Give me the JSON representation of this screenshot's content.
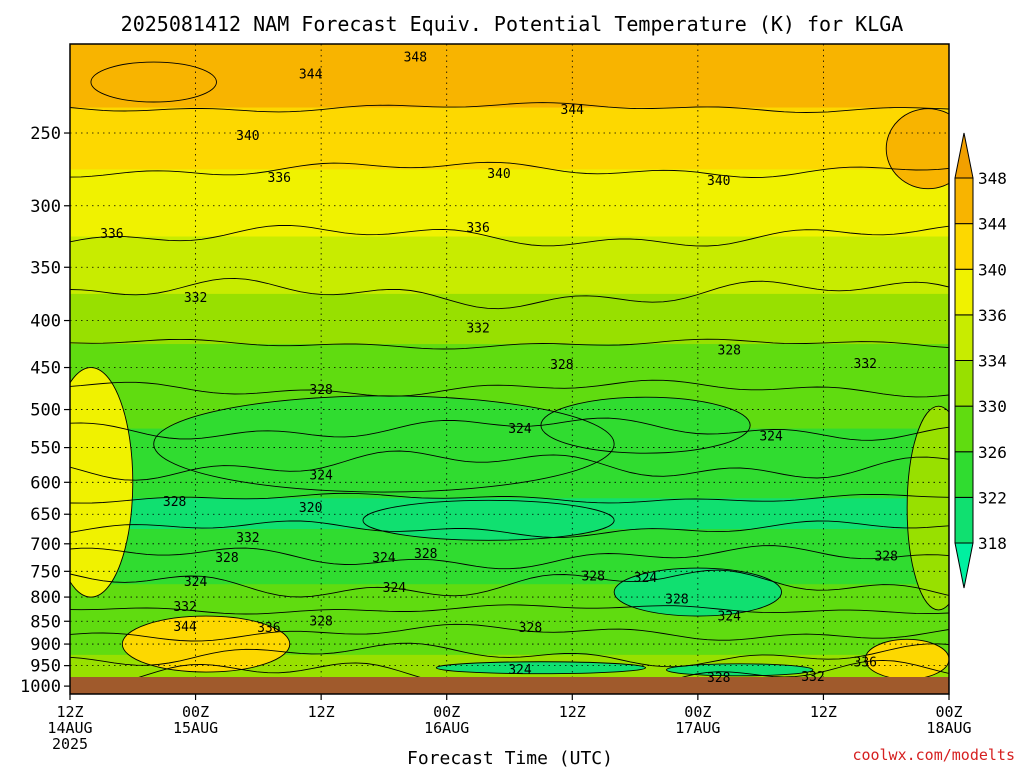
{
  "chart_data": {
    "type": "heatmap",
    "title": "2025081412 NAM Forecast Equiv. Potential Temperature (K) for KLGA",
    "xlabel": "Forecast Time (UTC)",
    "ylabel": "",
    "y_axis": {
      "scale": "log",
      "reversed": true,
      "range": [
        1020,
        200
      ],
      "ticks": [
        1000,
        950,
        900,
        850,
        800,
        750,
        700,
        650,
        600,
        550,
        500,
        450,
        400,
        350,
        300,
        250
      ]
    },
    "x_axis": {
      "range_hours": [
        0,
        84
      ],
      "ticks": [
        {
          "hour": 0,
          "line1": "12Z",
          "line2": "14AUG",
          "line3": "2025"
        },
        {
          "hour": 12,
          "line1": "00Z",
          "line2": "15AUG",
          "line3": ""
        },
        {
          "hour": 24,
          "line1": "12Z",
          "line2": "",
          "line3": ""
        },
        {
          "hour": 36,
          "line1": "00Z",
          "line2": "16AUG",
          "line3": ""
        },
        {
          "hour": 48,
          "line1": "12Z",
          "line2": "",
          "line3": ""
        },
        {
          "hour": 60,
          "line1": "00Z",
          "line2": "17AUG",
          "line3": ""
        },
        {
          "hour": 72,
          "line1": "12Z",
          "line2": "",
          "line3": ""
        },
        {
          "hour": 84,
          "line1": "00Z",
          "line2": "18AUG",
          "line3": ""
        }
      ]
    },
    "grid": true,
    "colorbar": {
      "placement": "right",
      "levels": [
        318,
        322,
        326,
        330,
        334,
        336,
        340,
        344,
        348
      ],
      "colors": [
        "#00f0a0",
        "#10e070",
        "#30dc30",
        "#60dc10",
        "#98e000",
        "#c8ec00",
        "#f0f200",
        "#fdd800",
        "#f8b400",
        "#f2a000"
      ],
      "ticklabels": [
        "318",
        "322",
        "326",
        "330",
        "334",
        "336",
        "340",
        "344",
        "348"
      ]
    },
    "profile_levels": [
      {
        "p": 220,
        "v": 346
      },
      {
        "p": 250,
        "v": 341
      },
      {
        "p": 300,
        "v": 337
      },
      {
        "p": 350,
        "v": 335
      },
      {
        "p": 400,
        "v": 332
      },
      {
        "p": 450,
        "v": 329
      },
      {
        "p": 500,
        "v": 326
      },
      {
        "p": 550,
        "v": 324
      },
      {
        "p": 600,
        "v": 323
      },
      {
        "p": 650,
        "v": 321
      },
      {
        "p": 700,
        "v": 323
      },
      {
        "p": 750,
        "v": 325
      },
      {
        "p": 800,
        "v": 326
      },
      {
        "p": 850,
        "v": 328
      },
      {
        "p": 900,
        "v": 329
      },
      {
        "p": 950,
        "v": 330
      },
      {
        "p": 1000,
        "v": 333
      }
    ],
    "contour_labels": [
      {
        "t": "348",
        "h": 33,
        "p": 207
      },
      {
        "t": "344",
        "h": 23,
        "p": 216
      },
      {
        "t": "344",
        "h": 48,
        "p": 236
      },
      {
        "t": "340",
        "h": 17,
        "p": 252
      },
      {
        "t": "336",
        "h": 20,
        "p": 280
      },
      {
        "t": "340",
        "h": 41,
        "p": 277
      },
      {
        "t": "340",
        "h": 62,
        "p": 282
      },
      {
        "t": "336",
        "h": 4,
        "p": 322
      },
      {
        "t": "336",
        "h": 39,
        "p": 317
      },
      {
        "t": "332",
        "h": 12,
        "p": 378
      },
      {
        "t": "332",
        "h": 39,
        "p": 408
      },
      {
        "t": "332",
        "h": 76,
        "p": 446
      },
      {
        "t": "328",
        "h": 47,
        "p": 447
      },
      {
        "t": "328",
        "h": 63,
        "p": 431
      },
      {
        "t": "328",
        "h": 24,
        "p": 476
      },
      {
        "t": "324",
        "h": 43,
        "p": 525
      },
      {
        "t": "324",
        "h": 67,
        "p": 535
      },
      {
        "t": "324",
        "h": 24,
        "p": 590
      },
      {
        "t": "328",
        "h": 10,
        "p": 630
      },
      {
        "t": "320",
        "h": 23,
        "p": 640
      },
      {
        "t": "332",
        "h": 17,
        "p": 690
      },
      {
        "t": "328",
        "h": 15,
        "p": 725
      },
      {
        "t": "324",
        "h": 30,
        "p": 725
      },
      {
        "t": "328",
        "h": 34,
        "p": 718
      },
      {
        "t": "324",
        "h": 12,
        "p": 770
      },
      {
        "t": "324",
        "h": 31,
        "p": 782
      },
      {
        "t": "328",
        "h": 50,
        "p": 760
      },
      {
        "t": "324",
        "h": 55,
        "p": 763
      },
      {
        "t": "328",
        "h": 78,
        "p": 723
      },
      {
        "t": "332",
        "h": 11,
        "p": 820
      },
      {
        "t": "344",
        "h": 11,
        "p": 862
      },
      {
        "t": "336",
        "h": 19,
        "p": 865
      },
      {
        "t": "328",
        "h": 24,
        "p": 850
      },
      {
        "t": "328",
        "h": 44,
        "p": 865
      },
      {
        "t": "328",
        "h": 58,
        "p": 805
      },
      {
        "t": "324",
        "h": 63,
        "p": 840
      },
      {
        "t": "336",
        "h": 76,
        "p": 943
      },
      {
        "t": "324",
        "h": 43,
        "p": 960
      },
      {
        "t": "328",
        "h": 62,
        "p": 980
      },
      {
        "t": "332",
        "h": 71,
        "p": 978
      }
    ],
    "credit": "coolwx.com/modelts"
  }
}
